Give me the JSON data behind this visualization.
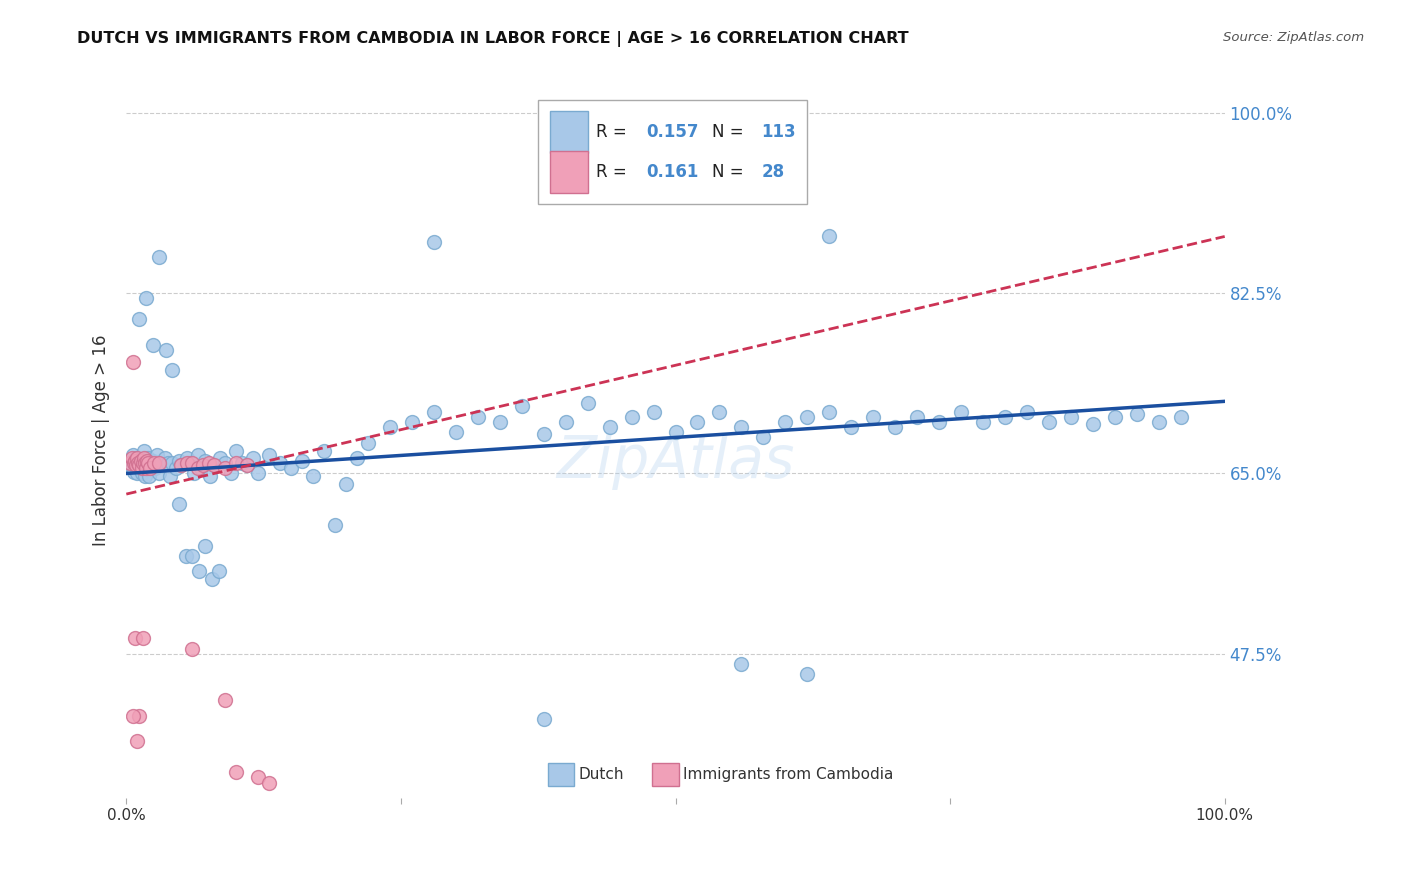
{
  "title": "DUTCH VS IMMIGRANTS FROM CAMBODIA IN LABOR FORCE | AGE > 16 CORRELATION CHART",
  "source_text": "Source: ZipAtlas.com",
  "ylabel": "In Labor Force | Age > 16",
  "xlim": [
    0.0,
    1.0
  ],
  "ylim": [
    0.335,
    1.03
  ],
  "yticks": [
    0.475,
    0.65,
    0.825,
    1.0
  ],
  "ytick_labels": [
    "47.5%",
    "65.0%",
    "82.5%",
    "100.0%"
  ],
  "xticks": [
    0.0,
    0.25,
    0.5,
    0.75,
    1.0
  ],
  "xtick_labels": [
    "0.0%",
    "",
    "",
    "",
    "100.0%"
  ],
  "dutch_R": 0.157,
  "dutch_N": 113,
  "cambodia_R": 0.161,
  "cambodia_N": 28,
  "dutch_color": "#a8c8e8",
  "dutch_edge_color": "#7aaad0",
  "dutch_line_color": "#1a4fa0",
  "cambodia_color": "#f0a0b8",
  "cambodia_edge_color": "#d07090",
  "cambodia_line_color": "#cc3355",
  "background_color": "#ffffff",
  "grid_color": "#cccccc",
  "title_color": "#111111",
  "tick_color_right": "#4488cc",
  "dutch_x": [
    0.003,
    0.004,
    0.005,
    0.006,
    0.007,
    0.008,
    0.009,
    0.01,
    0.011,
    0.012,
    0.013,
    0.014,
    0.015,
    0.016,
    0.017,
    0.018,
    0.019,
    0.02,
    0.021,
    0.022,
    0.024,
    0.026,
    0.028,
    0.03,
    0.032,
    0.035,
    0.038,
    0.04,
    0.042,
    0.045,
    0.048,
    0.05,
    0.055,
    0.058,
    0.062,
    0.065,
    0.068,
    0.072,
    0.076,
    0.08,
    0.085,
    0.09,
    0.095,
    0.1,
    0.105,
    0.11,
    0.115,
    0.12,
    0.13,
    0.14,
    0.15,
    0.16,
    0.17,
    0.18,
    0.19,
    0.2,
    0.21,
    0.22,
    0.24,
    0.26,
    0.28,
    0.3,
    0.32,
    0.34,
    0.36,
    0.38,
    0.4,
    0.42,
    0.44,
    0.46,
    0.48,
    0.5,
    0.52,
    0.54,
    0.56,
    0.58,
    0.6,
    0.62,
    0.64,
    0.66,
    0.68,
    0.7,
    0.72,
    0.74,
    0.76,
    0.78,
    0.8,
    0.82,
    0.84,
    0.86,
    0.88,
    0.9,
    0.92,
    0.94,
    0.96,
    0.012,
    0.018,
    0.024,
    0.03,
    0.036,
    0.042,
    0.048,
    0.054,
    0.06,
    0.066,
    0.072,
    0.078,
    0.084,
    0.28,
    0.64,
    0.62,
    0.56,
    0.38
  ],
  "dutch_y": [
    0.658,
    0.662,
    0.655,
    0.668,
    0.651,
    0.66,
    0.665,
    0.65,
    0.658,
    0.655,
    0.662,
    0.65,
    0.66,
    0.672,
    0.648,
    0.66,
    0.655,
    0.665,
    0.648,
    0.658,
    0.662,
    0.655,
    0.668,
    0.65,
    0.658,
    0.665,
    0.66,
    0.648,
    0.66,
    0.655,
    0.662,
    0.658,
    0.665,
    0.66,
    0.65,
    0.668,
    0.655,
    0.662,
    0.648,
    0.658,
    0.665,
    0.66,
    0.65,
    0.672,
    0.66,
    0.658,
    0.665,
    0.65,
    0.668,
    0.66,
    0.655,
    0.662,
    0.648,
    0.672,
    0.6,
    0.64,
    0.665,
    0.68,
    0.695,
    0.7,
    0.71,
    0.69,
    0.705,
    0.7,
    0.715,
    0.688,
    0.7,
    0.718,
    0.695,
    0.705,
    0.71,
    0.69,
    0.7,
    0.71,
    0.695,
    0.685,
    0.7,
    0.705,
    0.71,
    0.695,
    0.705,
    0.695,
    0.705,
    0.7,
    0.71,
    0.7,
    0.705,
    0.71,
    0.7,
    0.705,
    0.698,
    0.705,
    0.708,
    0.7,
    0.705,
    0.8,
    0.82,
    0.775,
    0.86,
    0.77,
    0.75,
    0.62,
    0.57,
    0.57,
    0.555,
    0.58,
    0.548,
    0.555,
    0.875,
    0.88,
    0.455,
    0.465,
    0.412
  ],
  "cambodia_x": [
    0.003,
    0.005,
    0.006,
    0.007,
    0.008,
    0.009,
    0.01,
    0.011,
    0.012,
    0.013,
    0.014,
    0.015,
    0.016,
    0.017,
    0.018,
    0.019,
    0.02,
    0.022,
    0.025,
    0.03,
    0.01,
    0.012,
    0.008,
    0.006,
    0.015,
    0.06,
    0.09,
    0.1
  ],
  "cambodia_y": [
    0.66,
    0.665,
    0.758,
    0.66,
    0.662,
    0.658,
    0.665,
    0.66,
    0.658,
    0.662,
    0.655,
    0.66,
    0.665,
    0.66,
    0.655,
    0.662,
    0.66,
    0.655,
    0.66,
    0.66,
    0.39,
    0.415,
    0.49,
    0.415,
    0.49,
    0.48,
    0.43,
    0.36
  ],
  "cambodia_extra_x": [
    0.05,
    0.055,
    0.06,
    0.065,
    0.07,
    0.075,
    0.08,
    0.09,
    0.1,
    0.11,
    0.12,
    0.13
  ],
  "cambodia_extra_y": [
    0.658,
    0.66,
    0.66,
    0.655,
    0.658,
    0.66,
    0.658,
    0.655,
    0.66,
    0.658,
    0.355,
    0.35
  ],
  "dutch_line_x0": 0.0,
  "dutch_line_y0": 0.65,
  "dutch_line_x1": 1.0,
  "dutch_line_y1": 0.72,
  "cam_line_x0": 0.0,
  "cam_line_y0": 0.63,
  "cam_line_x1": 1.0,
  "cam_line_y1": 0.88,
  "marker_size": 100
}
